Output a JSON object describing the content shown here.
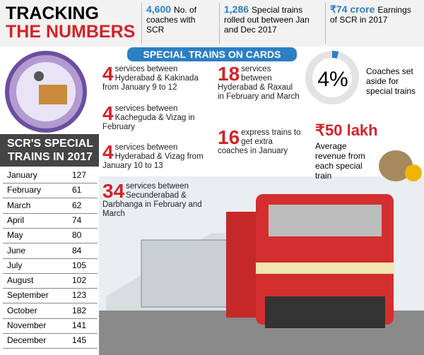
{
  "header": {
    "title_line1": "TRACKING",
    "title_line2": "THE NUMBERS"
  },
  "stats": [
    {
      "value": "4,600",
      "text": "No. of coaches with SCR"
    },
    {
      "value": "1,286",
      "text": "Special trains rolled out between Jan and Dec 2017"
    },
    {
      "value": "₹74 crore",
      "text": "Earnings of SCR in 2017"
    }
  ],
  "banner": "SPECIAL TRAINS ON CARDS",
  "cards": [
    {
      "number": "4",
      "text": "services between Hyderabad & Kakinada from January 9 to 12"
    },
    {
      "number": "4",
      "text": "services between Kacheguda & Vizag in February"
    },
    {
      "number": "4",
      "text": "services between Hyderabad & Vizag from January 10 to 13"
    },
    {
      "number": "34",
      "text": "services between Secunderabad & Darbhanga in February and March"
    },
    {
      "number": "18",
      "text": "services between Hyderabad & Raxaul in February and March"
    },
    {
      "number": "16",
      "text": "express trains to get extra coaches in January"
    }
  ],
  "highlights": [
    {
      "value": "4%",
      "text": "Coaches set aside for special trains"
    },
    {
      "value": "₹50 lakh",
      "text": "Average revenue from each special train"
    }
  ],
  "table": {
    "title": "SCR'S SPECIAL TRAINS IN 2017",
    "rows": [
      [
        "January",
        127
      ],
      [
        "February",
        61
      ],
      [
        "March",
        62
      ],
      [
        "April",
        74
      ],
      [
        "May",
        80
      ],
      [
        "June",
        84
      ],
      [
        "July",
        105
      ],
      [
        "August",
        102
      ],
      [
        "September",
        123
      ],
      [
        "October",
        182
      ],
      [
        "November",
        141
      ],
      [
        "December",
        145
      ]
    ]
  }
}
